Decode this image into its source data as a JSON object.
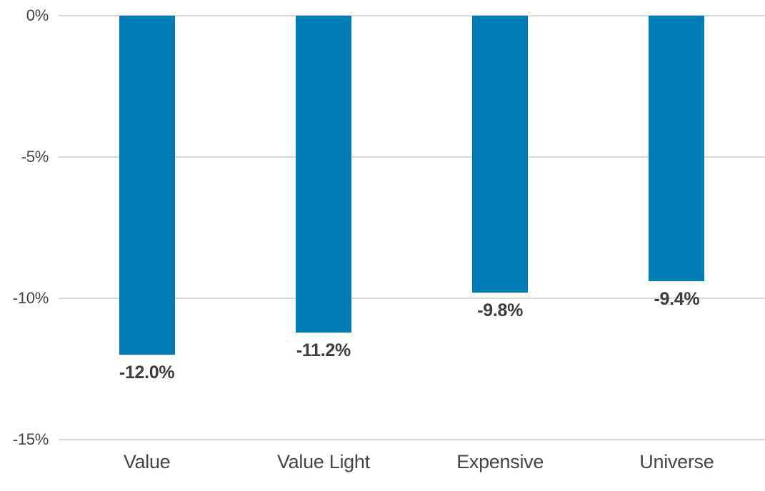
{
  "chart_data": {
    "type": "bar",
    "title": "",
    "xlabel": "",
    "ylabel": "",
    "categories": [
      "Value",
      "Value Light",
      "Expensive",
      "Universe"
    ],
    "values": [
      -12.0,
      -11.2,
      -9.8,
      -9.4
    ],
    "data_labels": [
      "-12.0%",
      "-11.2%",
      "-9.8%",
      "-9.4%"
    ],
    "y_ticks": [
      {
        "value": 0,
        "label": "0%"
      },
      {
        "value": -5,
        "label": "-5%"
      },
      {
        "value": -10,
        "label": "-10%"
      },
      {
        "value": -15,
        "label": "-15%"
      }
    ],
    "ylim": [
      -15,
      0
    ],
    "grid": "horizontal",
    "legend": "none",
    "orientation": "vertical",
    "colors": {
      "bar": "#007CB5",
      "gridline": "#D7D7D7",
      "tick_label": "#464646",
      "category_label": "#464646",
      "data_label": "#3D3D3D",
      "background": "#FFFFFF"
    }
  }
}
